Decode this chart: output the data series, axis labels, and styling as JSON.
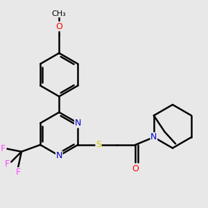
{
  "background_color": "#e8e8e8",
  "bond_color": "#000000",
  "bond_width": 1.8,
  "atom_colors": {
    "N": "#0000cc",
    "O": "#ff0000",
    "S": "#cccc00",
    "F": "#ff44ff",
    "C": "#000000"
  },
  "font_size": 9,
  "fig_width": 3.0,
  "fig_height": 3.0,
  "dpi": 100
}
